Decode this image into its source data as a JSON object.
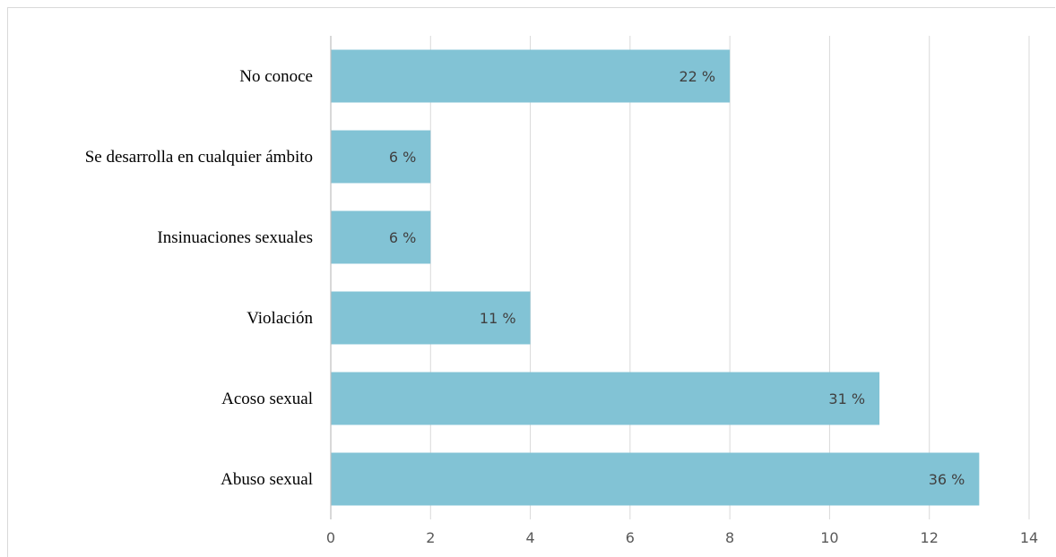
{
  "chart_data": {
    "type": "bar",
    "orientation": "horizontal",
    "categories": [
      "No conoce",
      "Se desarrolla en cualquier ámbito",
      "Insinuaciones sexuales",
      "Violación",
      "Acoso sexual",
      "Abuso sexual"
    ],
    "values": [
      8,
      2,
      2,
      4,
      11,
      13
    ],
    "data_labels": [
      "22 %",
      "6 %",
      "6 %",
      "11 %",
      "31 %",
      "36 %"
    ],
    "xlim": [
      0,
      14
    ],
    "x_ticks": [
      "0",
      "2",
      "4",
      "6",
      "8",
      "10",
      "12",
      "14"
    ],
    "grid": "vertical",
    "bar_color": "#82c3d5",
    "grid_color": "#d9d9d9"
  }
}
